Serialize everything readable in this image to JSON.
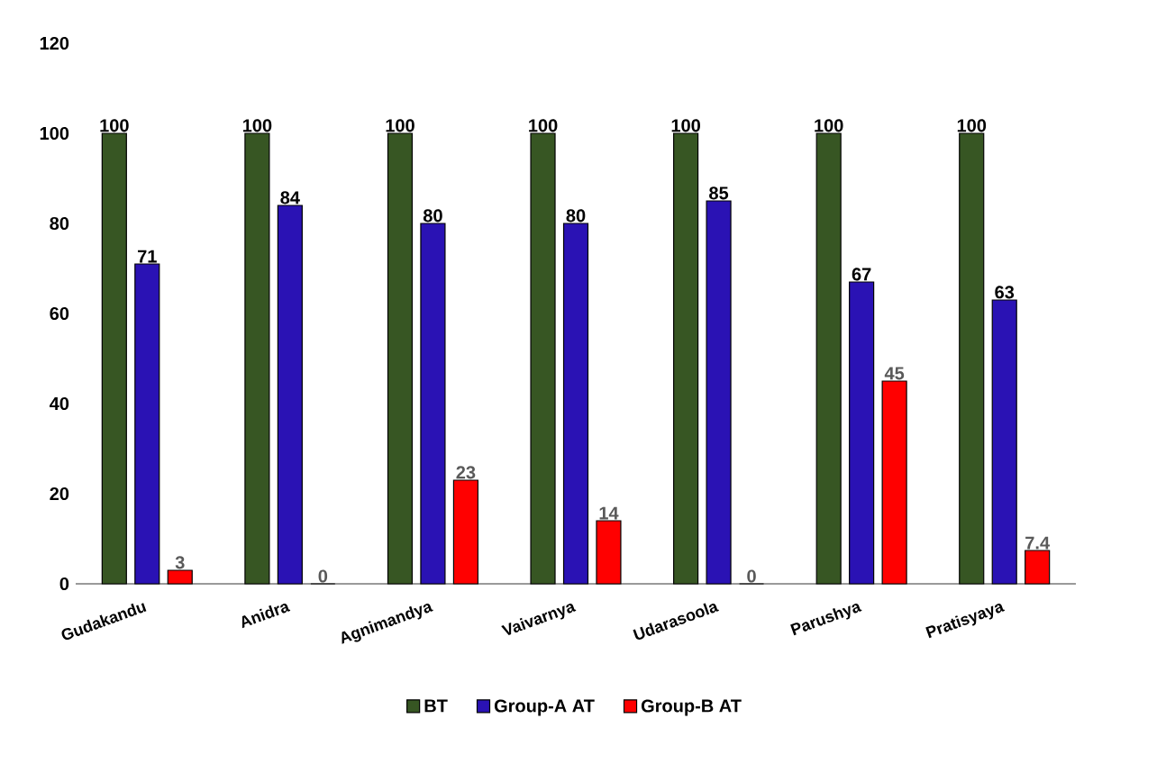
{
  "chart_data": {
    "type": "bar",
    "categories": [
      "Gudakandu",
      "Anidra",
      "Agnimandya",
      "Vaivarnya",
      "Udarasoola",
      "Parushya",
      "Pratisyaya"
    ],
    "series": [
      {
        "name": "BT",
        "color": "#375623",
        "values": [
          100,
          100,
          100,
          100,
          100,
          100,
          100
        ],
        "value_labels": [
          "100",
          "100",
          "100",
          "100",
          "100",
          "100",
          "100"
        ]
      },
      {
        "name": "Group-A  AT",
        "color": "#2a12b4",
        "values": [
          71,
          84,
          80,
          80,
          85,
          67,
          63
        ],
        "value_labels": [
          "71",
          "84",
          "80",
          "80",
          "85",
          "67",
          "63"
        ]
      },
      {
        "name": "Group-B  AT",
        "color": "#ff0000",
        "values": [
          3,
          0,
          23,
          14,
          0,
          45,
          7.4
        ],
        "value_labels": [
          "3",
          null,
          "23",
          "14",
          null,
          "45",
          "7.4"
        ]
      }
    ],
    "annotations": [
      {
        "text": "0",
        "x": "Anidra",
        "y": 0
      },
      {
        "text": "0",
        "x": "Udarasoola",
        "y": 0
      }
    ],
    "ylim": [
      0,
      120
    ],
    "yticks": [
      0,
      20,
      40,
      60,
      80,
      100,
      120
    ],
    "legend": "bottom",
    "grid": false
  }
}
